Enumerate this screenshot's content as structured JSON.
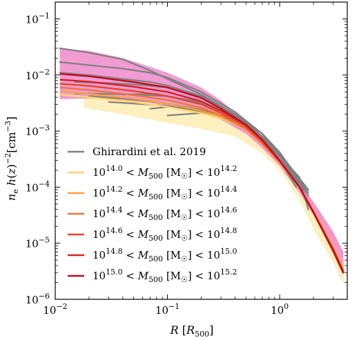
{
  "chart_data": {
    "type": "line",
    "xlabel": "R [R500]",
    "ylabel": "n_e h(z)^-2 [cm^-3]",
    "xscale": "log",
    "yscale": "log",
    "xlim": [
      0.01,
      4
    ],
    "ylim": [
      1e-06,
      0.2
    ],
    "x_ticks": [
      {
        "value": 0.01,
        "base": "10",
        "exp": "−2"
      },
      {
        "value": 0.1,
        "base": "10",
        "exp": "−1"
      },
      {
        "value": 1,
        "base": "10",
        "exp": "0"
      }
    ],
    "y_ticks": [
      {
        "value": 1e-06,
        "base": "10",
        "exp": "−6"
      },
      {
        "value": 1e-05,
        "base": "10",
        "exp": "−5"
      },
      {
        "value": 0.0001,
        "base": "10",
        "exp": "−4"
      },
      {
        "value": 0.001,
        "base": "10",
        "exp": "−3"
      },
      {
        "value": 0.01,
        "base": "10",
        "exp": "−2"
      },
      {
        "value": 0.1,
        "base": "10",
        "exp": "−1"
      }
    ],
    "legend_position": "lower-left",
    "legend": [
      {
        "label": "Ghirardini et al. 2019",
        "color": "#808080"
      },
      {
        "pre": "10",
        "lo": "14.0",
        "mid": " < M",
        "sub": "500",
        "unit": " [M",
        "sun": "☉",
        "post": "] < 10",
        "hi": "14.2",
        "color": "#fdd56b"
      },
      {
        "pre": "10",
        "lo": "14.2",
        "mid": " < M",
        "sub": "500",
        "unit": " [M",
        "sun": "☉",
        "post": "] < 10",
        "hi": "14.4",
        "color": "#f9a13c"
      },
      {
        "pre": "10",
        "lo": "14.4",
        "mid": " < M",
        "sub": "500",
        "unit": " [M",
        "sun": "☉",
        "post": "] < 10",
        "hi": "14.6",
        "color": "#f3742e"
      },
      {
        "pre": "10",
        "lo": "14.6",
        "mid": " < M",
        "sub": "500",
        "unit": " [M",
        "sun": "☉",
        "post": "] < 10",
        "hi": "14.8",
        "color": "#e94426"
      },
      {
        "pre": "10",
        "lo": "14.8",
        "mid": " < M",
        "sub": "500",
        "unit": " [M",
        "sun": "☉",
        "post": "] < 10",
        "hi": "15.0",
        "color": "#d81e1e"
      },
      {
        "pre": "10",
        "lo": "15.0",
        "mid": " < M",
        "sub": "500",
        "unit": " [M",
        "sun": "☉",
        "post": "] < 10",
        "hi": "15.2",
        "color": "#c00d1c"
      }
    ],
    "bands": [
      {
        "name": "low-mass scatter",
        "color": "#fde9a8",
        "x": [
          0.018,
          0.03,
          0.06,
          0.1,
          0.2,
          0.4,
          0.7,
          1.0,
          1.5,
          2.0,
          3.0,
          3.7
        ],
        "upper": [
          0.0042,
          0.004,
          0.0035,
          0.003,
          0.0023,
          0.0014,
          0.0007,
          0.00035,
          0.00012,
          5e-05,
          1.5e-05,
          6e-06
        ],
        "lower": [
          0.0026,
          0.0022,
          0.0017,
          0.0014,
          0.0011,
          0.0008,
          0.0004,
          0.0002,
          6e-05,
          1.8e-05,
          4.5e-06,
          1.8e-06
        ]
      },
      {
        "name": "high-mass scatter",
        "color": "#ee82c8",
        "x": [
          0.011,
          0.02,
          0.04,
          0.07,
          0.1,
          0.2,
          0.3,
          0.5,
          0.7,
          1.0,
          1.5,
          2.0,
          3.0,
          3.7
        ],
        "upper": [
          0.03,
          0.027,
          0.02,
          0.014,
          0.011,
          0.006,
          0.0035,
          0.0015,
          0.0008,
          0.00035,
          0.00012,
          5.5e-05,
          1.6e-05,
          7e-06
        ],
        "lower": [
          0.0037,
          0.0038,
          0.0036,
          0.0032,
          0.0028,
          0.0021,
          0.0016,
          0.0009,
          0.0005,
          0.00024,
          8e-05,
          3.2e-05,
          8e-06,
          3.5e-06
        ]
      }
    ],
    "series": [
      {
        "color": "#fdd56b",
        "x": [
          0.011,
          0.02,
          0.05,
          0.1,
          0.2,
          0.3,
          0.5,
          0.7,
          1.0,
          1.5,
          2.0,
          3.0,
          3.7
        ],
        "y": [
          0.0045,
          0.004,
          0.0033,
          0.0027,
          0.0021,
          0.0017,
          0.0011,
          0.0006,
          0.00028,
          0.0001,
          3.8e-05,
          8.5e-06,
          3.5e-06
        ]
      },
      {
        "color": "#f9a13c",
        "x": [
          0.011,
          0.02,
          0.05,
          0.1,
          0.2,
          0.3,
          0.5,
          0.7,
          1.0,
          1.5,
          2.0,
          3.0,
          3.7
        ],
        "y": [
          0.0052,
          0.0046,
          0.0038,
          0.0031,
          0.0023,
          0.0018,
          0.0011,
          0.0006,
          0.00028,
          0.0001,
          3.7e-05,
          8.2e-06,
          3.3e-06
        ]
      },
      {
        "color": "#f3742e",
        "x": [
          0.011,
          0.02,
          0.05,
          0.1,
          0.2,
          0.3,
          0.5,
          0.7,
          1.0,
          1.5,
          2.0,
          3.0,
          3.7
        ],
        "y": [
          0.006,
          0.0054,
          0.0044,
          0.0036,
          0.0026,
          0.0019,
          0.0011,
          0.0006,
          0.00028,
          0.0001,
          3.7e-05,
          8e-06,
          3.2e-06
        ]
      },
      {
        "color": "#e94426",
        "x": [
          0.011,
          0.02,
          0.05,
          0.1,
          0.2,
          0.3,
          0.5,
          0.7,
          1.0,
          1.5,
          2.0,
          3.0,
          3.7
        ],
        "y": [
          0.007,
          0.0064,
          0.0052,
          0.0042,
          0.003,
          0.0021,
          0.0012,
          0.00065,
          0.00029,
          0.0001,
          3.6e-05,
          7.8e-06,
          3.1e-06
        ]
      },
      {
        "color": "#d81e1e",
        "x": [
          0.011,
          0.02,
          0.05,
          0.1,
          0.2,
          0.3,
          0.5,
          0.7,
          1.0,
          1.5,
          2.0,
          3.0,
          3.7
        ],
        "y": [
          0.0083,
          0.0076,
          0.0062,
          0.005,
          0.0034,
          0.0023,
          0.0013,
          0.0007,
          0.0003,
          0.0001,
          3.6e-05,
          7.5e-06,
          3e-06
        ]
      },
      {
        "color": "#c00d1c",
        "x": [
          0.011,
          0.02,
          0.05,
          0.1,
          0.2,
          0.3,
          0.5,
          0.7,
          1.0,
          1.5,
          2.0,
          3.0,
          3.7
        ],
        "y": [
          0.0105,
          0.0095,
          0.0075,
          0.006,
          0.0039,
          0.0025,
          0.0013,
          0.0007,
          0.0003,
          0.0001,
          3.5e-05,
          7.2e-06,
          2.9e-06
        ]
      }
    ],
    "observed_profiles": [
      {
        "x": [
          0.011,
          0.02,
          0.04,
          0.07,
          0.1,
          0.2,
          0.4,
          0.7,
          1.0,
          1.4
        ],
        "y": [
          0.03,
          0.025,
          0.019,
          0.012,
          0.0085,
          0.0045,
          0.002,
          0.0008,
          0.0003,
          0.0001
        ]
      },
      {
        "x": [
          0.011,
          0.02,
          0.04,
          0.07,
          0.1,
          0.2,
          0.4,
          0.7,
          1.0,
          1.6
        ],
        "y": [
          0.017,
          0.015,
          0.013,
          0.011,
          0.009,
          0.005,
          0.0022,
          0.0009,
          0.00035,
          9e-05
        ]
      },
      {
        "x": [
          0.011,
          0.02,
          0.04,
          0.07,
          0.1,
          0.2,
          0.4,
          0.7,
          1.0,
          1.5
        ],
        "y": [
          0.011,
          0.01,
          0.0085,
          0.0075,
          0.0065,
          0.0042,
          0.002,
          0.0009,
          0.0004,
          0.00012
        ]
      },
      {
        "x": [
          0.015,
          0.03,
          0.05,
          0.1,
          0.2,
          0.4,
          0.7,
          1.0,
          1.5
        ],
        "y": [
          0.0075,
          0.0072,
          0.0068,
          0.006,
          0.004,
          0.0019,
          0.0008,
          0.00035,
          0.00012
        ]
      },
      {
        "x": [
          0.015,
          0.03,
          0.05,
          0.1,
          0.2,
          0.4,
          0.7,
          1.0,
          1.8
        ],
        "y": [
          0.0047,
          0.0046,
          0.0045,
          0.0042,
          0.0032,
          0.0018,
          0.0009,
          0.00042,
          8e-05
        ]
      },
      {
        "x": [
          0.02,
          0.04,
          0.08,
          0.1,
          0.2,
          0.4,
          0.6,
          1.0,
          1.8
        ],
        "y": [
          0.0042,
          0.0038,
          0.0033,
          0.0031,
          0.0024,
          0.0016,
          0.0009,
          0.0004,
          9e-05
        ]
      },
      {
        "x": [
          0.03,
          0.05,
          0.1,
          0.2,
          0.3,
          0.5,
          0.8,
          1.2
        ],
        "y": [
          0.0033,
          0.0031,
          0.0028,
          0.0023,
          0.0019,
          0.0013,
          0.0006,
          0.00022
        ]
      },
      {
        "x": [
          0.07,
          0.1,
          0.15,
          0.2,
          0.3,
          0.5,
          0.8,
          1.2,
          1.8
        ],
        "y": [
          0.0025,
          0.0027,
          0.0025,
          0.0022,
          0.0017,
          0.0011,
          0.0006,
          0.00025,
          7e-05
        ]
      },
      {
        "x": [
          0.1,
          0.2,
          0.4,
          0.7,
          1.0,
          1.5,
          1.8
        ],
        "y": [
          0.0019,
          0.0021,
          0.0016,
          0.0008,
          0.00035,
          0.00014,
          9e-05
        ]
      },
      {
        "x": [
          0.04,
          0.08,
          0.1,
          0.2,
          0.4,
          0.7,
          1.0,
          1.5,
          1.8
        ],
        "y": [
          0.0045,
          0.0046,
          0.0042,
          0.0033,
          0.0018,
          0.0008,
          0.00036,
          0.00015,
          4e-05
        ]
      }
    ]
  }
}
